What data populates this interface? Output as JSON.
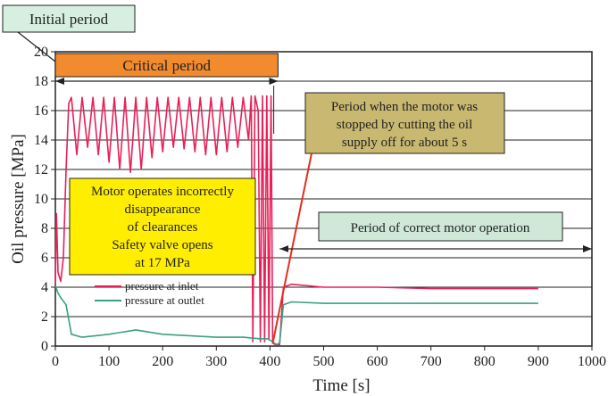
{
  "chart_data": {
    "type": "line",
    "title": "",
    "xlabel": "Time [s]",
    "ylabel": "Oil pressure [MPa]",
    "xlim": [
      0,
      1000
    ],
    "ylim": [
      0,
      20
    ],
    "xticks": [
      0,
      100,
      200,
      300,
      400,
      500,
      600,
      700,
      800,
      900,
      1000
    ],
    "yticks": [
      0,
      2,
      4,
      6,
      8,
      10,
      12,
      14,
      16,
      18,
      20
    ],
    "grid": "horizontal",
    "legend_position": "lower-left",
    "series": [
      {
        "name": "pressure at inlet",
        "color": "#e8205a",
        "points": [
          [
            0,
            4.2
          ],
          [
            2,
            9.0
          ],
          [
            5,
            5.0
          ],
          [
            10,
            4.4
          ],
          [
            15,
            6.0
          ],
          [
            20,
            12.0
          ],
          [
            25,
            16.5
          ],
          [
            30,
            16.9
          ],
          [
            40,
            13.0
          ],
          [
            50,
            16.9
          ],
          [
            60,
            13.5
          ],
          [
            70,
            16.9
          ],
          [
            80,
            13.0
          ],
          [
            90,
            16.9
          ],
          [
            100,
            12.5
          ],
          [
            110,
            16.9
          ],
          [
            120,
            12.0
          ],
          [
            130,
            16.9
          ],
          [
            140,
            11.8
          ],
          [
            150,
            16.9
          ],
          [
            160,
            12.0
          ],
          [
            170,
            16.9
          ],
          [
            180,
            12.8
          ],
          [
            190,
            16.9
          ],
          [
            200,
            13.2
          ],
          [
            210,
            16.9
          ],
          [
            220,
            13.5
          ],
          [
            230,
            16.9
          ],
          [
            240,
            13.4
          ],
          [
            250,
            16.9
          ],
          [
            260,
            13.2
          ],
          [
            270,
            16.9
          ],
          [
            280,
            13.0
          ],
          [
            290,
            16.9
          ],
          [
            300,
            13.0
          ],
          [
            310,
            16.9
          ],
          [
            320,
            13.2
          ],
          [
            330,
            16.9
          ],
          [
            340,
            13.5
          ],
          [
            350,
            16.9
          ],
          [
            360,
            14.0
          ],
          [
            365,
            17.0
          ],
          [
            368,
            0.3
          ],
          [
            372,
            17.0
          ],
          [
            378,
            16.0
          ],
          [
            382,
            0.3
          ],
          [
            386,
            17.0
          ],
          [
            390,
            0.3
          ],
          [
            394,
            17.0
          ],
          [
            398,
            0.5
          ],
          [
            402,
            17.0
          ],
          [
            405,
            0.2
          ],
          [
            410,
            0.1
          ],
          [
            418,
            0.1
          ],
          [
            425,
            4.0
          ],
          [
            440,
            4.2
          ],
          [
            500,
            4.0
          ],
          [
            600,
            4.0
          ],
          [
            700,
            3.9
          ],
          [
            800,
            3.9
          ],
          [
            900,
            3.9
          ]
        ]
      },
      {
        "name": "pressure at outlet",
        "color": "#3aa080",
        "points": [
          [
            0,
            4.1
          ],
          [
            5,
            3.6
          ],
          [
            10,
            3.3
          ],
          [
            20,
            2.8
          ],
          [
            30,
            0.8
          ],
          [
            50,
            0.6
          ],
          [
            100,
            0.8
          ],
          [
            150,
            1.1
          ],
          [
            200,
            0.8
          ],
          [
            250,
            0.7
          ],
          [
            300,
            0.6
          ],
          [
            350,
            0.6
          ],
          [
            380,
            0.5
          ],
          [
            395,
            0.5
          ],
          [
            405,
            0.3
          ],
          [
            412,
            0.1
          ],
          [
            418,
            0.2
          ],
          [
            425,
            2.8
          ],
          [
            440,
            3.0
          ],
          [
            500,
            2.9
          ],
          [
            600,
            2.9
          ],
          [
            700,
            2.9
          ],
          [
            800,
            2.9
          ],
          [
            900,
            2.9
          ]
        ]
      }
    ],
    "annotations": {
      "initial_period": "Initial period",
      "critical_period": "Critical period",
      "motor_stopped": [
        "Period when the motor was",
        "stopped by cutting the oil",
        "supply off for about 5 s"
      ],
      "incorrect_operation": [
        "Motor operates incorrectly",
        "disappearance",
        "of clearances",
        "Safety valve opens",
        "at 17 MPa"
      ],
      "correct_operation": "Period of correct motor operation"
    },
    "colors": {
      "initial_box": "#d7efe0",
      "critical_box": "#f28a2e",
      "stopped_box": "#c9b870",
      "incorrect_box": "#ffee00",
      "correct_box": "#cfe8d8"
    }
  }
}
